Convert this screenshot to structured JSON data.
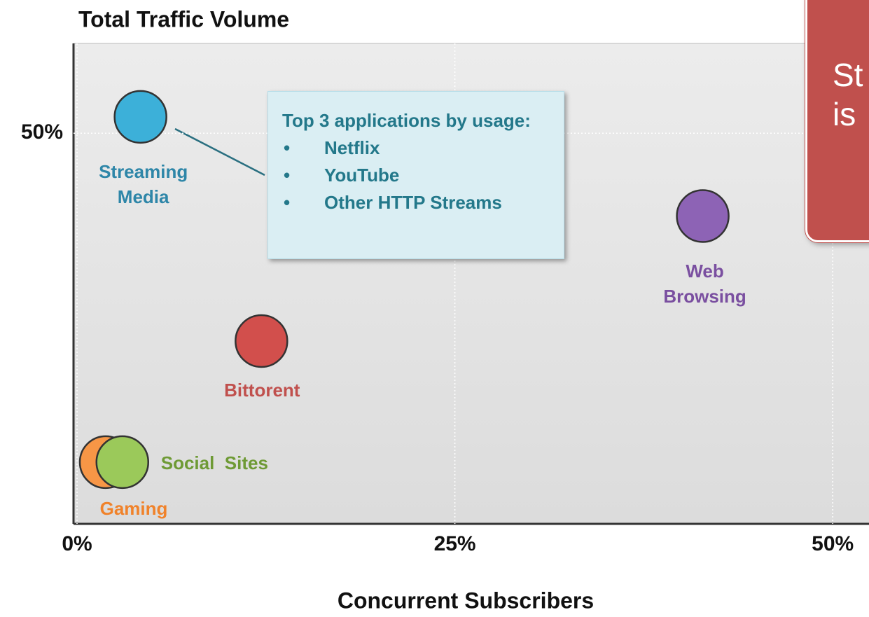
{
  "chart_data": {
    "type": "scatter",
    "title": "Total Traffic Volume",
    "x_label": "Concurrent Subscribers",
    "xlim": [
      0,
      52.4
    ],
    "ylim": [
      0,
      61.5
    ],
    "xticks": [
      {
        "value": 0,
        "label": "0%"
      },
      {
        "value": 25,
        "label": "25%"
      },
      {
        "value": 50,
        "label": "50%"
      }
    ],
    "yticks": [
      {
        "value": 50,
        "label": "50%"
      }
    ],
    "grid": true,
    "series": [
      {
        "name": "Streaming Media",
        "color": "#3cb0d9",
        "x": [
          4.2
        ],
        "values": [
          52.1
        ]
      },
      {
        "name": "Web Browsing",
        "color": "#8d63b5",
        "x": [
          41.4
        ],
        "values": [
          39.4
        ]
      },
      {
        "name": "Bittorent",
        "color": "#d24f4c",
        "x": [
          12.2
        ],
        "values": [
          23.4
        ]
      },
      {
        "name": "Gaming",
        "color": "#f79646",
        "x": [
          1.9
        ],
        "values": [
          7.9
        ]
      },
      {
        "name": "Social  Sites",
        "color": "#9bc95a",
        "x": [
          3.0
        ],
        "values": [
          7.9
        ]
      }
    ],
    "callout": {
      "title": "Top 3 applications by usage:",
      "items": [
        "Netflix",
        "YouTube",
        "Other HTTP Streams"
      ]
    },
    "banner": [
      "St",
      "is"
    ]
  }
}
